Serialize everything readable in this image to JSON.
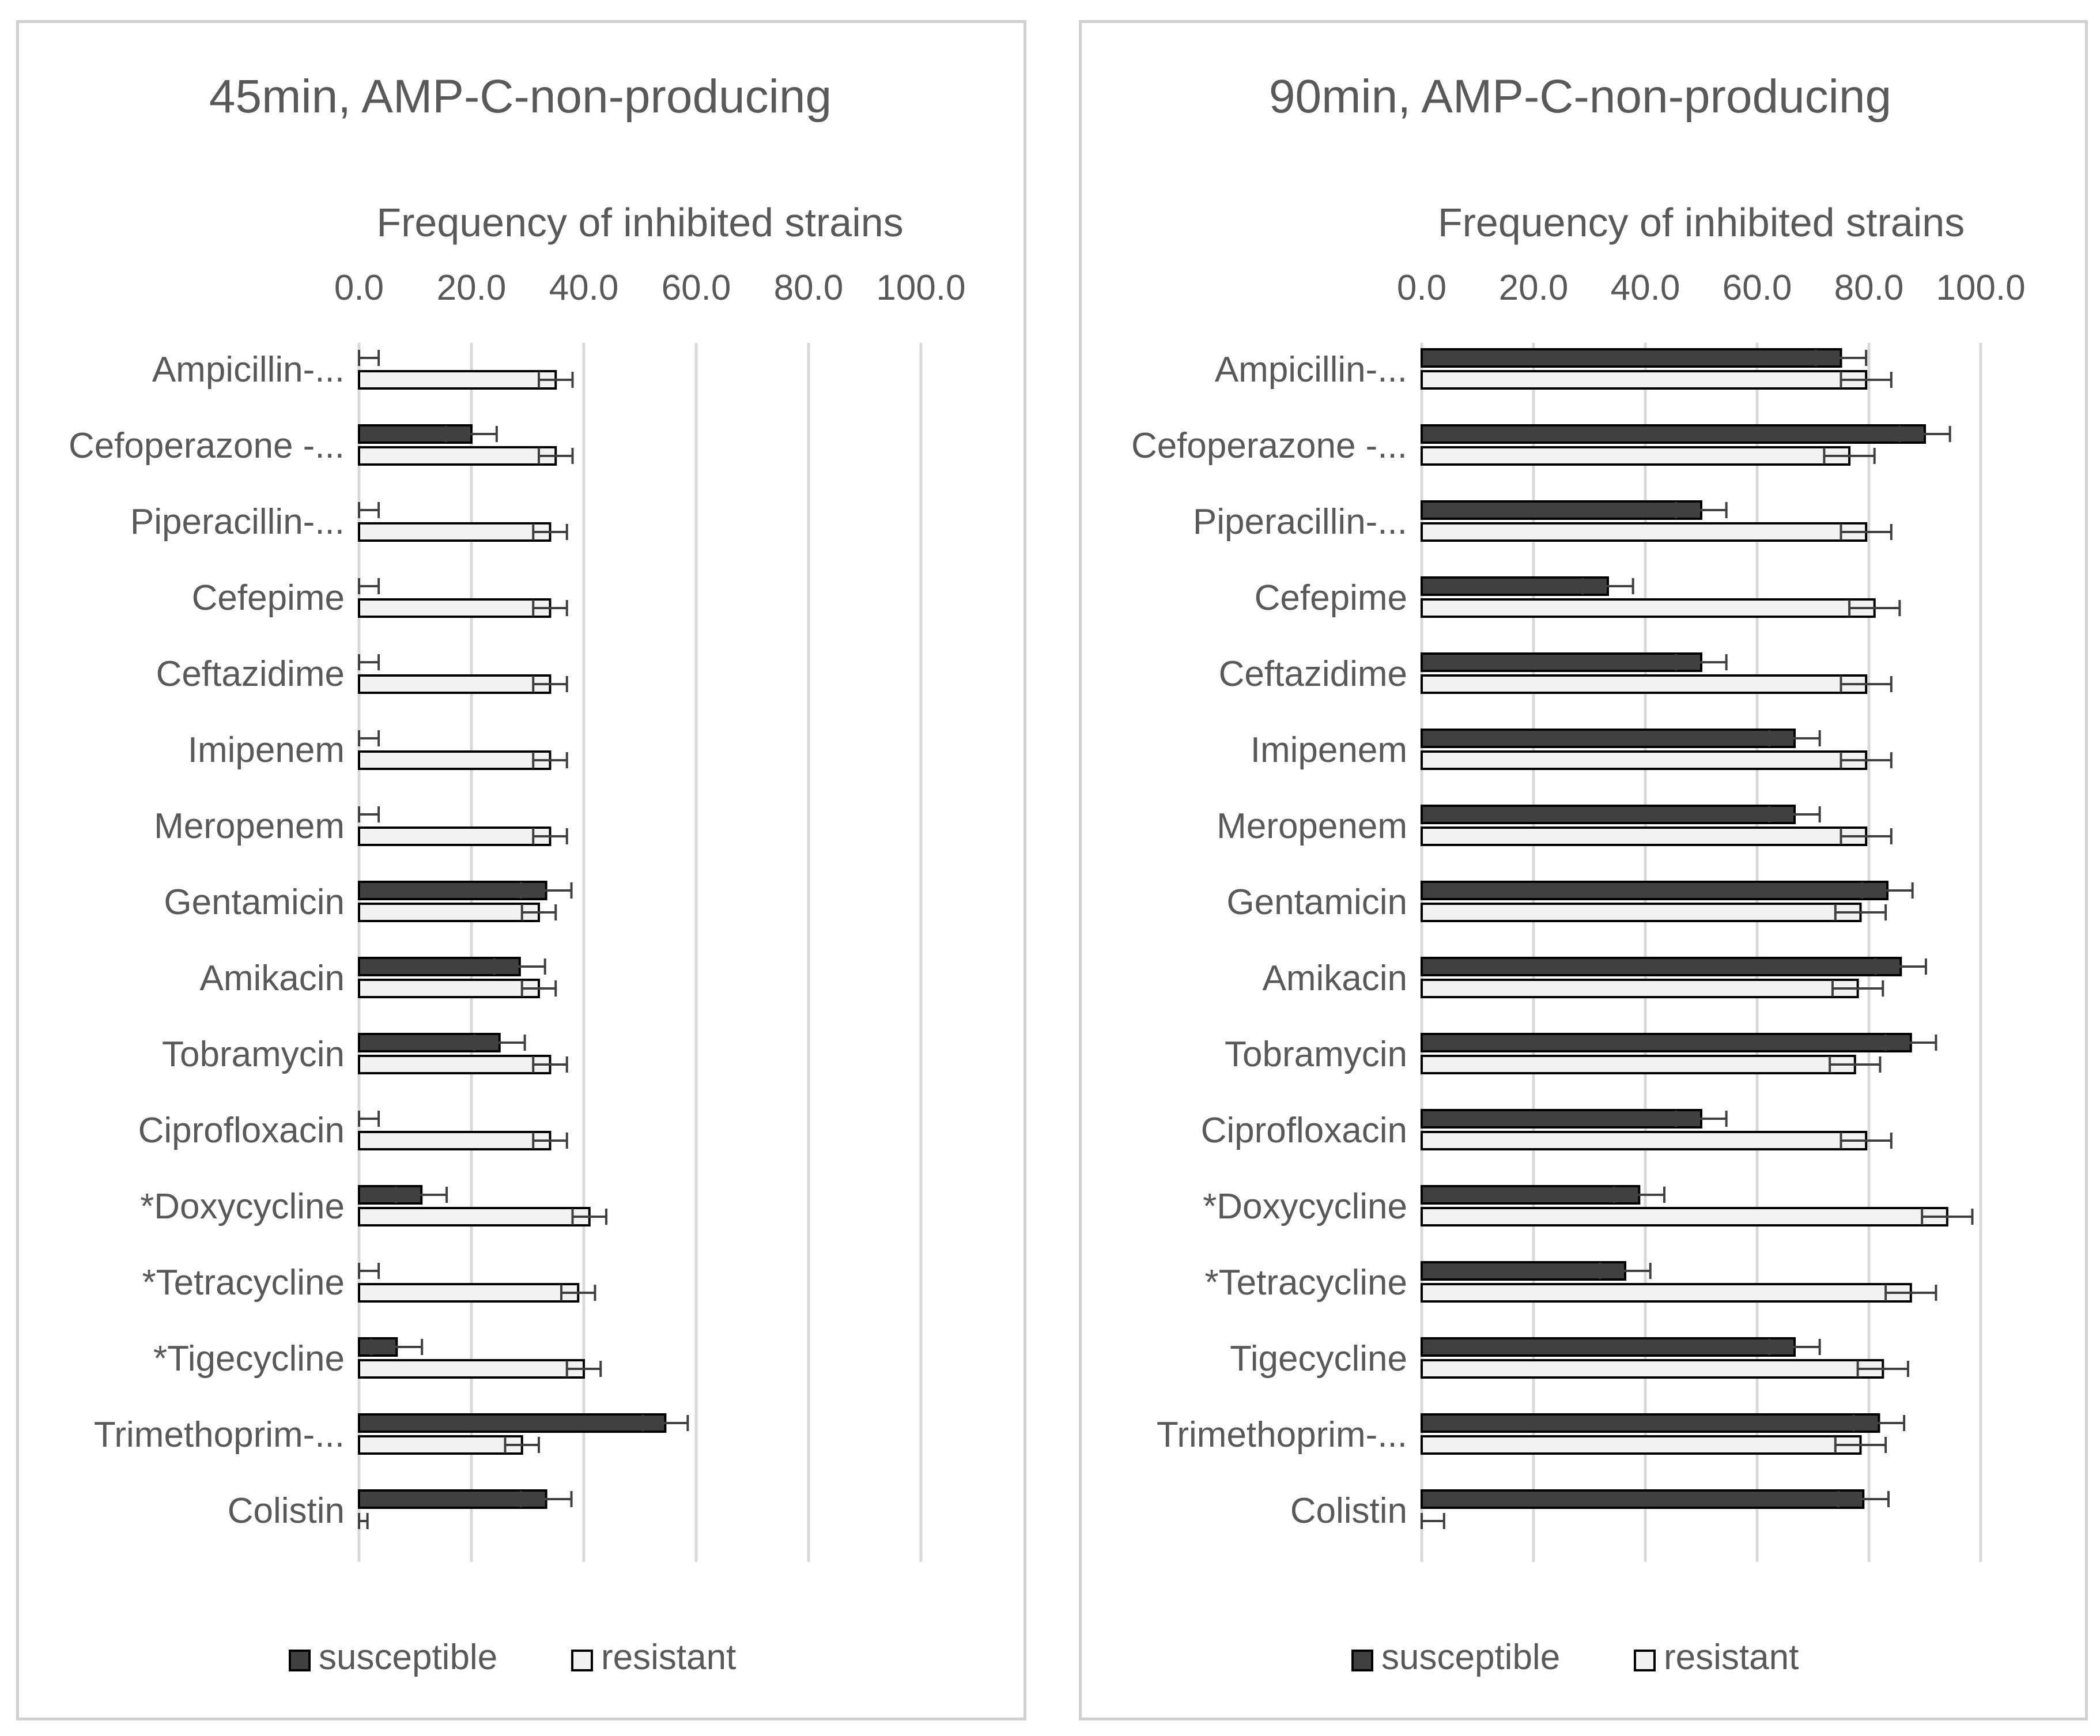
{
  "chart_data": [
    {
      "type": "bar",
      "orientation": "horizontal",
      "title": "45min, AMP-C-non-producing",
      "xlabel": "Frequency of inhibited strains",
      "xlim": [
        0,
        100
      ],
      "x_ticks": [
        "0.0",
        "20.0",
        "40.0",
        "60.0",
        "80.0",
        "100.0"
      ],
      "grid": "vertical",
      "legend_position": "bottom",
      "categories": [
        "Ampicillin-...",
        "Cefoperazone -...",
        "Piperacillin-...",
        "Cefepime",
        "Ceftazidime",
        "Imipenem",
        "Meropenem",
        "Gentamicin",
        "Amikacin",
        "Tobramycin",
        "Ciprofloxacin",
        "*Doxycycline",
        "*Tetracycline",
        "*Tigecycline",
        "Trimethoprim-...",
        "Colistin"
      ],
      "series": [
        {
          "name": "susceptible",
          "color": "#404040",
          "values": [
            0,
            20,
            0,
            0,
            0,
            0,
            0,
            33.3,
            28.6,
            25,
            0,
            11.1,
            0,
            6.7,
            54.5,
            33.3
          ],
          "errors": [
            3.5,
            4.5,
            3.5,
            3.5,
            3.5,
            3.5,
            3.5,
            4.5,
            4.5,
            4.5,
            3.5,
            4.5,
            3.5,
            4.5,
            4,
            4.5
          ]
        },
        {
          "name": "resistant",
          "color": "#f2f2f2",
          "values": [
            35,
            35,
            34,
            34,
            34,
            34,
            34,
            32,
            32,
            34,
            34,
            41,
            39,
            40,
            29,
            0
          ],
          "errors": [
            3,
            3,
            3,
            3,
            3,
            3,
            3,
            3,
            3,
            3,
            3,
            3,
            3,
            3,
            3,
            1.5
          ]
        }
      ]
    },
    {
      "type": "bar",
      "orientation": "horizontal",
      "title": "90min, AMP-C-non-producing",
      "xlabel": "Frequency of inhibited strains",
      "xlim": [
        0,
        100
      ],
      "x_ticks": [
        "0.0",
        "20.0",
        "40.0",
        "60.0",
        "80.0",
        "100.0"
      ],
      "grid": "vertical",
      "legend_position": "bottom",
      "categories": [
        "Ampicillin-...",
        "Cefoperazone -...",
        "Piperacillin-...",
        "Cefepime",
        "Ceftazidime",
        "Imipenem",
        "Meropenem",
        "Gentamicin",
        "Amikacin",
        "Tobramycin",
        "Ciprofloxacin",
        "*Doxycycline",
        "*Tetracycline",
        "Tigecycline",
        "Trimethoprim-...",
        "Colistin"
      ],
      "series": [
        {
          "name": "susceptible",
          "color": "#404040",
          "values": [
            75,
            90,
            50,
            33.3,
            50,
            66.7,
            66.7,
            83.3,
            85.7,
            87.5,
            50,
            38.9,
            36.4,
            66.7,
            81.8,
            79
          ],
          "errors": [
            4.5,
            4.5,
            4.5,
            4.5,
            4.5,
            4.5,
            4.5,
            4.5,
            4.5,
            4.5,
            4.5,
            4.5,
            4.5,
            4.5,
            4.5,
            4.5
          ]
        },
        {
          "name": "resistant",
          "color": "#f2f2f2",
          "values": [
            79.5,
            76.5,
            79.5,
            81,
            79.5,
            79.5,
            79.5,
            78.5,
            78,
            77.5,
            79.5,
            94,
            87.5,
            82.5,
            78.5,
            0
          ],
          "errors": [
            4.5,
            4.5,
            4.5,
            4.5,
            4.5,
            4.5,
            4.5,
            4.5,
            4.5,
            4.5,
            4.5,
            4.5,
            4.5,
            4.5,
            4.5,
            4
          ]
        }
      ]
    }
  ]
}
